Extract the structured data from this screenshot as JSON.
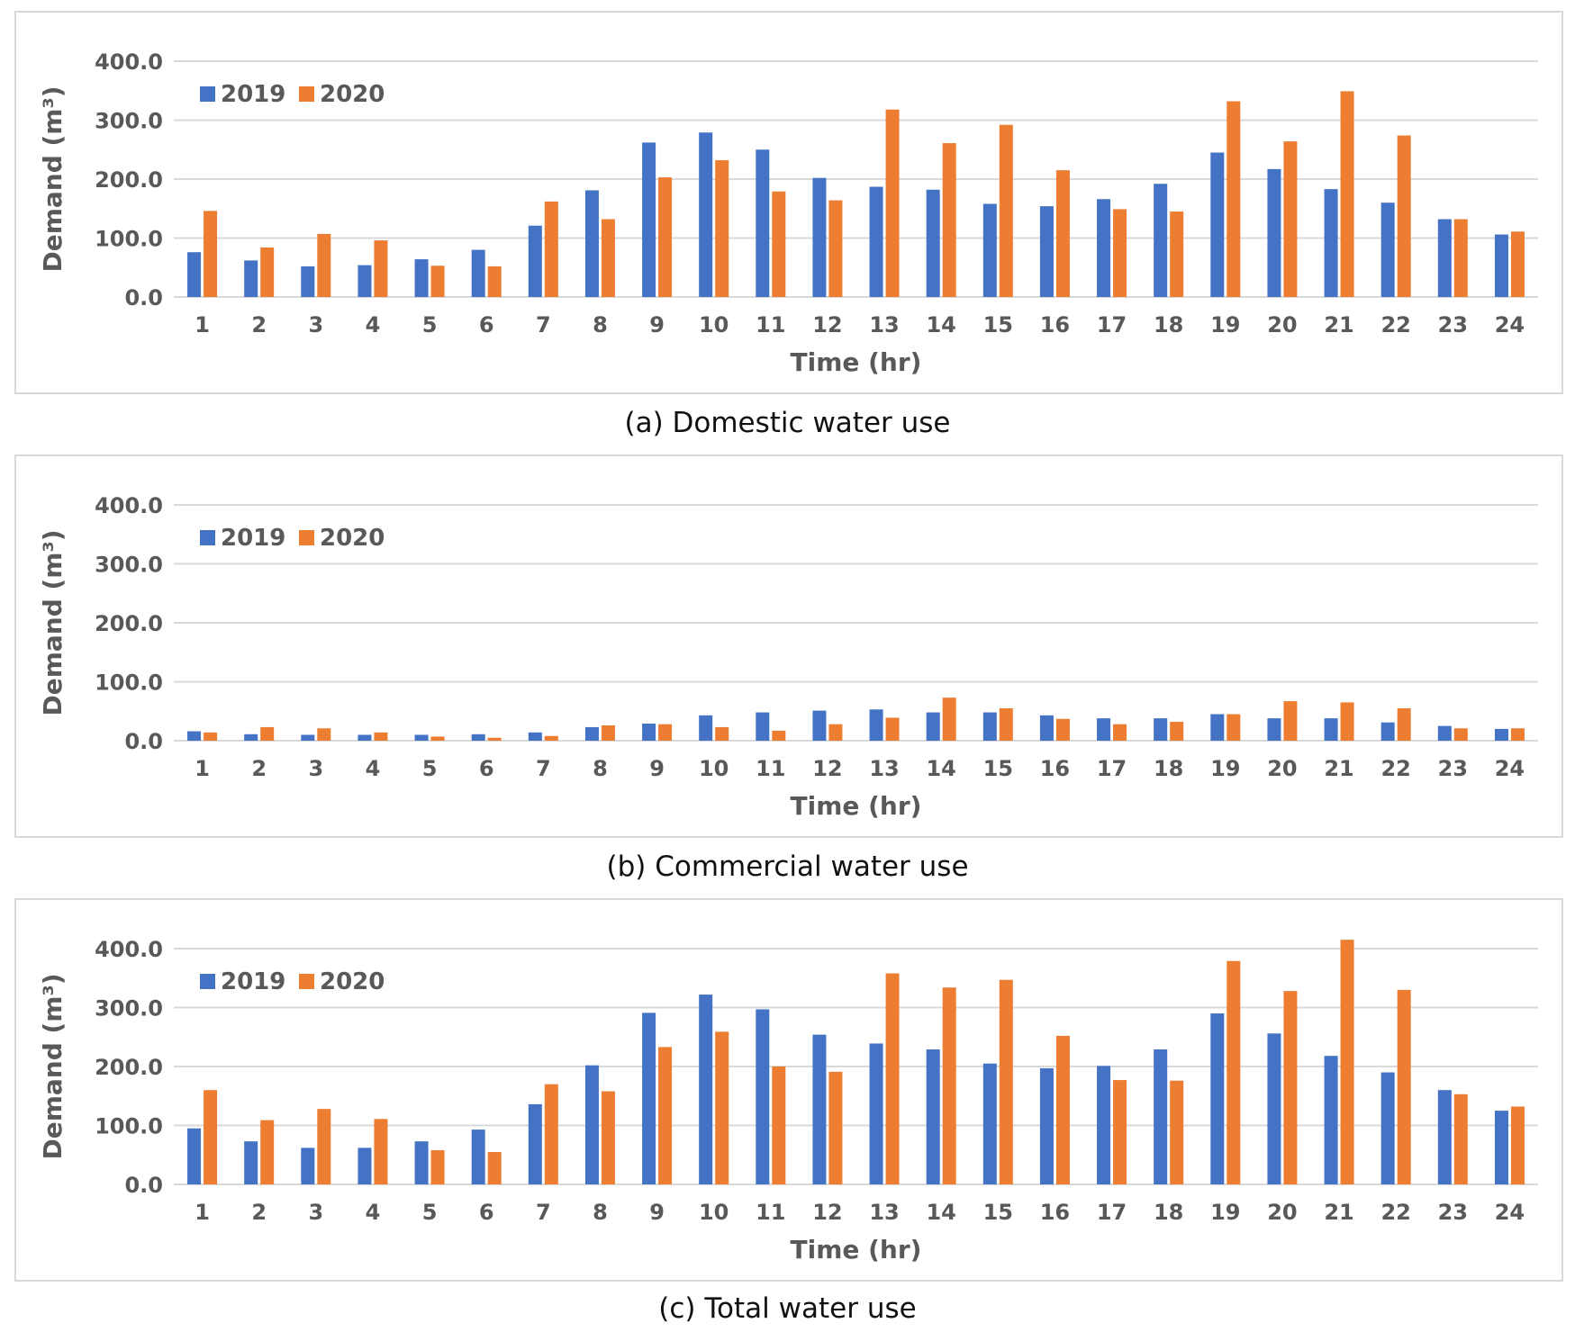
{
  "colors": {
    "s2019": "#4472c4",
    "s2020": "#ed7d31",
    "grid": "#d9d9d9",
    "text": "#595959"
  },
  "chart_data": [
    {
      "type": "bar",
      "caption": "(a) Domestic water use",
      "xlabel": "Time (hr)",
      "ylabel": "Demand (m³)",
      "ylim": [
        0,
        400
      ],
      "yticks": [
        "0.0",
        "100.0",
        "200.0",
        "300.0",
        "400.0"
      ],
      "categories": [
        "1",
        "2",
        "3",
        "4",
        "5",
        "6",
        "7",
        "8",
        "9",
        "10",
        "11",
        "12",
        "13",
        "14",
        "15",
        "16",
        "17",
        "18",
        "19",
        "20",
        "21",
        "22",
        "23",
        "24"
      ],
      "series": [
        {
          "name": "2019",
          "values": [
            76,
            62,
            52,
            54,
            64,
            80,
            121,
            181,
            262,
            279,
            250,
            202,
            187,
            182,
            158,
            154,
            166,
            192,
            245,
            217,
            183,
            160,
            132,
            106
          ]
        },
        {
          "name": "2020",
          "values": [
            146,
            84,
            107,
            96,
            53,
            52,
            162,
            132,
            203,
            232,
            179,
            164,
            318,
            261,
            292,
            215,
            149,
            145,
            332,
            264,
            349,
            274,
            132,
            111
          ]
        }
      ]
    },
    {
      "type": "bar",
      "caption": "(b) Commercial water use",
      "xlabel": "Time (hr)",
      "ylabel": "Demand (m³)",
      "ylim": [
        0,
        400
      ],
      "yticks": [
        "0.0",
        "100.0",
        "200.0",
        "300.0",
        "400.0"
      ],
      "categories": [
        "1",
        "2",
        "3",
        "4",
        "5",
        "6",
        "7",
        "8",
        "9",
        "10",
        "11",
        "12",
        "13",
        "14",
        "15",
        "16",
        "17",
        "18",
        "19",
        "20",
        "21",
        "22",
        "23",
        "24"
      ],
      "series": [
        {
          "name": "2019",
          "values": [
            16,
            11,
            10,
            10,
            10,
            11,
            14,
            23,
            29,
            43,
            48,
            51,
            53,
            48,
            48,
            43,
            38,
            38,
            45,
            38,
            38,
            31,
            25,
            20
          ]
        },
        {
          "name": "2020",
          "values": [
            14,
            23,
            21,
            14,
            7,
            5,
            8,
            26,
            28,
            23,
            17,
            28,
            39,
            73,
            55,
            37,
            28,
            32,
            45,
            67,
            65,
            55,
            21,
            21
          ]
        }
      ]
    },
    {
      "type": "bar",
      "caption": "(c) Total water use",
      "xlabel": "Time (hr)",
      "ylabel": "Demand (m³)",
      "ylim": [
        0,
        400
      ],
      "yticks": [
        "0.0",
        "100.0",
        "200.0",
        "300.0",
        "400.0"
      ],
      "categories": [
        "1",
        "2",
        "3",
        "4",
        "5",
        "6",
        "7",
        "8",
        "9",
        "10",
        "11",
        "12",
        "13",
        "14",
        "15",
        "16",
        "17",
        "18",
        "19",
        "20",
        "21",
        "22",
        "23",
        "24"
      ],
      "series": [
        {
          "name": "2019",
          "values": [
            95,
            73,
            62,
            62,
            73,
            93,
            136,
            202,
            291,
            322,
            297,
            254,
            239,
            229,
            205,
            197,
            201,
            229,
            290,
            256,
            218,
            190,
            160,
            125
          ]
        },
        {
          "name": "2020",
          "values": [
            160,
            109,
            128,
            111,
            58,
            55,
            170,
            158,
            233,
            259,
            200,
            191,
            358,
            334,
            347,
            252,
            177,
            176,
            379,
            328,
            415,
            330,
            153,
            132
          ]
        }
      ]
    }
  ]
}
